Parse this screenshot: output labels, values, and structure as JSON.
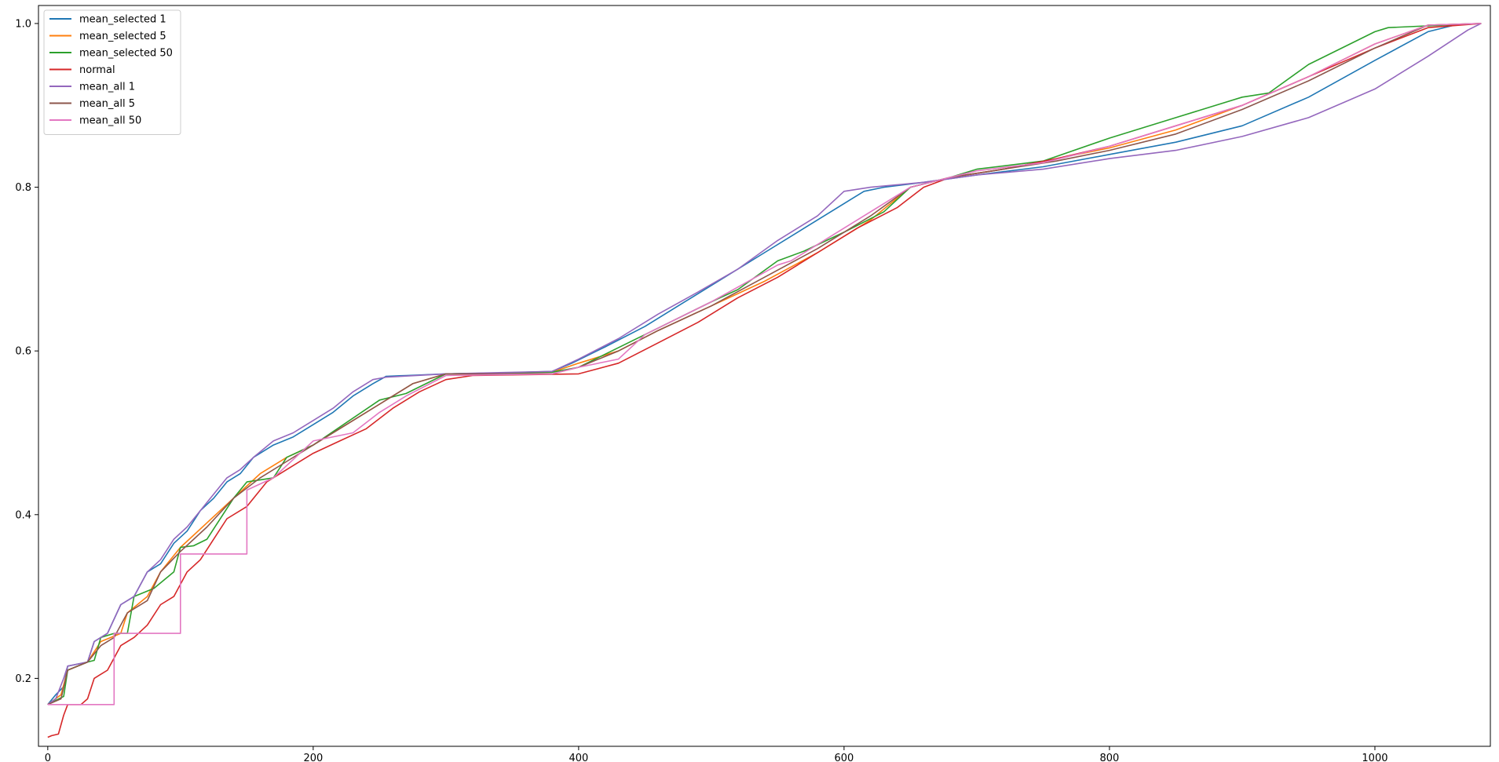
{
  "chart_data": {
    "type": "line",
    "title": "",
    "xlabel": "",
    "ylabel": "",
    "xlim": [
      -7,
      1087
    ],
    "ylim": [
      0.117,
      1.022
    ],
    "xticks": [
      0,
      200,
      400,
      600,
      800,
      1000
    ],
    "yticks": [
      0.2,
      0.4,
      0.6,
      0.8,
      1.0
    ],
    "xtick_labels": [
      "0",
      "200",
      "400",
      "600",
      "800",
      "1000"
    ],
    "ytick_labels": [
      "0.2",
      "0.4",
      "0.6",
      "0.8",
      "1.0"
    ],
    "grid": false,
    "legend_position": "upper left",
    "series": [
      {
        "name": "mean_selected 1",
        "color": "#1f77b4",
        "points": [
          [
            0,
            0.168
          ],
          [
            6,
            0.18
          ],
          [
            12,
            0.19
          ],
          [
            15,
            0.215
          ],
          [
            30,
            0.22
          ],
          [
            35,
            0.245
          ],
          [
            45,
            0.255
          ],
          [
            55,
            0.29
          ],
          [
            65,
            0.3
          ],
          [
            75,
            0.33
          ],
          [
            85,
            0.34
          ],
          [
            95,
            0.365
          ],
          [
            105,
            0.38
          ],
          [
            115,
            0.405
          ],
          [
            125,
            0.42
          ],
          [
            135,
            0.44
          ],
          [
            145,
            0.45
          ],
          [
            155,
            0.47
          ],
          [
            170,
            0.485
          ],
          [
            185,
            0.495
          ],
          [
            200,
            0.51
          ],
          [
            215,
            0.525
          ],
          [
            230,
            0.545
          ],
          [
            245,
            0.56
          ],
          [
            255,
            0.569
          ],
          [
            270,
            0.57
          ],
          [
            300,
            0.572
          ],
          [
            340,
            0.573
          ],
          [
            380,
            0.575
          ],
          [
            395,
            0.585
          ],
          [
            420,
            0.605
          ],
          [
            450,
            0.63
          ],
          [
            480,
            0.66
          ],
          [
            510,
            0.69
          ],
          [
            540,
            0.72
          ],
          [
            570,
            0.75
          ],
          [
            600,
            0.78
          ],
          [
            615,
            0.795
          ],
          [
            630,
            0.8
          ],
          [
            660,
            0.806
          ],
          [
            700,
            0.815
          ],
          [
            750,
            0.825
          ],
          [
            800,
            0.84
          ],
          [
            850,
            0.855
          ],
          [
            900,
            0.875
          ],
          [
            950,
            0.91
          ],
          [
            1000,
            0.955
          ],
          [
            1040,
            0.99
          ],
          [
            1060,
            0.998
          ],
          [
            1080,
            1.0
          ]
        ]
      },
      {
        "name": "mean_selected 5",
        "color": "#ff7f0e",
        "points": [
          [
            0,
            0.168
          ],
          [
            10,
            0.18
          ],
          [
            15,
            0.21
          ],
          [
            30,
            0.22
          ],
          [
            40,
            0.245
          ],
          [
            55,
            0.255
          ],
          [
            60,
            0.28
          ],
          [
            75,
            0.3
          ],
          [
            85,
            0.33
          ],
          [
            100,
            0.36
          ],
          [
            110,
            0.375
          ],
          [
            120,
            0.39
          ],
          [
            140,
            0.42
          ],
          [
            160,
            0.45
          ],
          [
            180,
            0.47
          ],
          [
            200,
            0.485
          ],
          [
            225,
            0.51
          ],
          [
            250,
            0.535
          ],
          [
            275,
            0.56
          ],
          [
            300,
            0.572
          ],
          [
            340,
            0.572
          ],
          [
            380,
            0.574
          ],
          [
            400,
            0.585
          ],
          [
            430,
            0.6
          ],
          [
            460,
            0.625
          ],
          [
            500,
            0.655
          ],
          [
            540,
            0.685
          ],
          [
            580,
            0.72
          ],
          [
            620,
            0.76
          ],
          [
            650,
            0.8
          ],
          [
            680,
            0.812
          ],
          [
            720,
            0.822
          ],
          [
            760,
            0.835
          ],
          [
            800,
            0.848
          ],
          [
            850,
            0.87
          ],
          [
            900,
            0.9
          ],
          [
            950,
            0.935
          ],
          [
            1000,
            0.975
          ],
          [
            1040,
            0.998
          ],
          [
            1080,
            1.0
          ]
        ]
      },
      {
        "name": "mean_selected 50",
        "color": "#2ca02c",
        "points": [
          [
            0,
            0.168
          ],
          [
            12,
            0.178
          ],
          [
            15,
            0.21
          ],
          [
            30,
            0.22
          ],
          [
            35,
            0.222
          ],
          [
            40,
            0.25
          ],
          [
            50,
            0.255
          ],
          [
            60,
            0.255
          ],
          [
            65,
            0.3
          ],
          [
            80,
            0.31
          ],
          [
            95,
            0.33
          ],
          [
            100,
            0.36
          ],
          [
            110,
            0.362
          ],
          [
            120,
            0.37
          ],
          [
            140,
            0.42
          ],
          [
            150,
            0.44
          ],
          [
            170,
            0.445
          ],
          [
            180,
            0.47
          ],
          [
            200,
            0.485
          ],
          [
            250,
            0.54
          ],
          [
            270,
            0.548
          ],
          [
            300,
            0.572
          ],
          [
            380,
            0.574
          ],
          [
            400,
            0.58
          ],
          [
            450,
            0.62
          ],
          [
            500,
            0.66
          ],
          [
            520,
            0.675
          ],
          [
            550,
            0.71
          ],
          [
            570,
            0.722
          ],
          [
            600,
            0.745
          ],
          [
            630,
            0.77
          ],
          [
            650,
            0.8
          ],
          [
            680,
            0.812
          ],
          [
            700,
            0.822
          ],
          [
            750,
            0.832
          ],
          [
            800,
            0.86
          ],
          [
            850,
            0.885
          ],
          [
            900,
            0.91
          ],
          [
            920,
            0.915
          ],
          [
            950,
            0.95
          ],
          [
            1000,
            0.99
          ],
          [
            1010,
            0.995
          ],
          [
            1080,
            1.0
          ]
        ]
      },
      {
        "name": "normal",
        "color": "#d62728",
        "points": [
          [
            0,
            0.128
          ],
          [
            3,
            0.13
          ],
          [
            8,
            0.132
          ],
          [
            12,
            0.155
          ],
          [
            15,
            0.168
          ],
          [
            25,
            0.168
          ],
          [
            30,
            0.175
          ],
          [
            35,
            0.2
          ],
          [
            45,
            0.21
          ],
          [
            55,
            0.24
          ],
          [
            65,
            0.25
          ],
          [
            75,
            0.265
          ],
          [
            85,
            0.29
          ],
          [
            95,
            0.3
          ],
          [
            105,
            0.33
          ],
          [
            115,
            0.345
          ],
          [
            125,
            0.37
          ],
          [
            135,
            0.395
          ],
          [
            150,
            0.41
          ],
          [
            165,
            0.44
          ],
          [
            185,
            0.46
          ],
          [
            200,
            0.475
          ],
          [
            220,
            0.49
          ],
          [
            240,
            0.505
          ],
          [
            260,
            0.53
          ],
          [
            280,
            0.55
          ],
          [
            300,
            0.565
          ],
          [
            320,
            0.57
          ],
          [
            360,
            0.571
          ],
          [
            400,
            0.572
          ],
          [
            430,
            0.585
          ],
          [
            460,
            0.61
          ],
          [
            490,
            0.635
          ],
          [
            520,
            0.665
          ],
          [
            550,
            0.69
          ],
          [
            580,
            0.72
          ],
          [
            610,
            0.75
          ],
          [
            640,
            0.775
          ],
          [
            660,
            0.8
          ],
          [
            680,
            0.812
          ],
          [
            720,
            0.822
          ],
          [
            760,
            0.835
          ],
          [
            800,
            0.85
          ],
          [
            850,
            0.875
          ],
          [
            900,
            0.9
          ],
          [
            950,
            0.935
          ],
          [
            1000,
            0.97
          ],
          [
            1040,
            0.995
          ],
          [
            1080,
            1.0
          ]
        ]
      },
      {
        "name": "mean_all 1",
        "color": "#9467bd",
        "points": [
          [
            0,
            0.168
          ],
          [
            6,
            0.175
          ],
          [
            12,
            0.2
          ],
          [
            15,
            0.215
          ],
          [
            30,
            0.22
          ],
          [
            35,
            0.245
          ],
          [
            45,
            0.255
          ],
          [
            55,
            0.29
          ],
          [
            65,
            0.3
          ],
          [
            75,
            0.33
          ],
          [
            85,
            0.345
          ],
          [
            95,
            0.37
          ],
          [
            105,
            0.385
          ],
          [
            115,
            0.405
          ],
          [
            125,
            0.425
          ],
          [
            135,
            0.445
          ],
          [
            145,
            0.455
          ],
          [
            155,
            0.47
          ],
          [
            170,
            0.49
          ],
          [
            185,
            0.5
          ],
          [
            200,
            0.515
          ],
          [
            215,
            0.53
          ],
          [
            230,
            0.55
          ],
          [
            245,
            0.565
          ],
          [
            255,
            0.568
          ],
          [
            300,
            0.572
          ],
          [
            380,
            0.575
          ],
          [
            400,
            0.59
          ],
          [
            430,
            0.615
          ],
          [
            460,
            0.645
          ],
          [
            490,
            0.672
          ],
          [
            520,
            0.7
          ],
          [
            550,
            0.735
          ],
          [
            580,
            0.765
          ],
          [
            600,
            0.795
          ],
          [
            620,
            0.8
          ],
          [
            660,
            0.806
          ],
          [
            700,
            0.815
          ],
          [
            750,
            0.822
          ],
          [
            800,
            0.835
          ],
          [
            850,
            0.845
          ],
          [
            900,
            0.862
          ],
          [
            950,
            0.885
          ],
          [
            1000,
            0.92
          ],
          [
            1040,
            0.96
          ],
          [
            1070,
            0.992
          ],
          [
            1080,
            1.0
          ]
        ]
      },
      {
        "name": "mean_all 5",
        "color": "#8c564b",
        "points": [
          [
            0,
            0.168
          ],
          [
            10,
            0.175
          ],
          [
            15,
            0.21
          ],
          [
            30,
            0.22
          ],
          [
            40,
            0.24
          ],
          [
            50,
            0.25
          ],
          [
            60,
            0.28
          ],
          [
            75,
            0.295
          ],
          [
            85,
            0.33
          ],
          [
            100,
            0.355
          ],
          [
            110,
            0.37
          ],
          [
            120,
            0.385
          ],
          [
            140,
            0.42
          ],
          [
            160,
            0.445
          ],
          [
            180,
            0.465
          ],
          [
            200,
            0.485
          ],
          [
            225,
            0.51
          ],
          [
            250,
            0.535
          ],
          [
            275,
            0.56
          ],
          [
            300,
            0.572
          ],
          [
            380,
            0.572
          ],
          [
            400,
            0.58
          ],
          [
            430,
            0.6
          ],
          [
            460,
            0.625
          ],
          [
            500,
            0.655
          ],
          [
            540,
            0.69
          ],
          [
            580,
            0.725
          ],
          [
            620,
            0.765
          ],
          [
            650,
            0.8
          ],
          [
            680,
            0.812
          ],
          [
            720,
            0.822
          ],
          [
            760,
            0.832
          ],
          [
            800,
            0.845
          ],
          [
            850,
            0.865
          ],
          [
            900,
            0.895
          ],
          [
            950,
            0.93
          ],
          [
            1000,
            0.97
          ],
          [
            1040,
            0.998
          ],
          [
            1080,
            1.0
          ]
        ]
      },
      {
        "name": "mean_all 50",
        "color": "#e377c2",
        "points": [
          [
            0,
            0.168
          ],
          [
            50,
            0.168
          ],
          [
            50,
            0.255
          ],
          [
            100,
            0.255
          ],
          [
            100,
            0.352
          ],
          [
            150,
            0.352
          ],
          [
            150,
            0.43
          ],
          [
            170,
            0.445
          ],
          [
            200,
            0.49
          ],
          [
            230,
            0.5
          ],
          [
            250,
            0.525
          ],
          [
            270,
            0.545
          ],
          [
            300,
            0.57
          ],
          [
            380,
            0.572
          ],
          [
            400,
            0.58
          ],
          [
            430,
            0.59
          ],
          [
            450,
            0.62
          ],
          [
            500,
            0.66
          ],
          [
            550,
            0.705
          ],
          [
            560,
            0.71
          ],
          [
            600,
            0.75
          ],
          [
            630,
            0.78
          ],
          [
            650,
            0.8
          ],
          [
            680,
            0.812
          ],
          [
            700,
            0.82
          ],
          [
            750,
            0.83
          ],
          [
            800,
            0.85
          ],
          [
            850,
            0.875
          ],
          [
            900,
            0.9
          ],
          [
            950,
            0.935
          ],
          [
            1000,
            0.975
          ],
          [
            1040,
            0.998
          ],
          [
            1080,
            1.0
          ]
        ]
      }
    ]
  }
}
